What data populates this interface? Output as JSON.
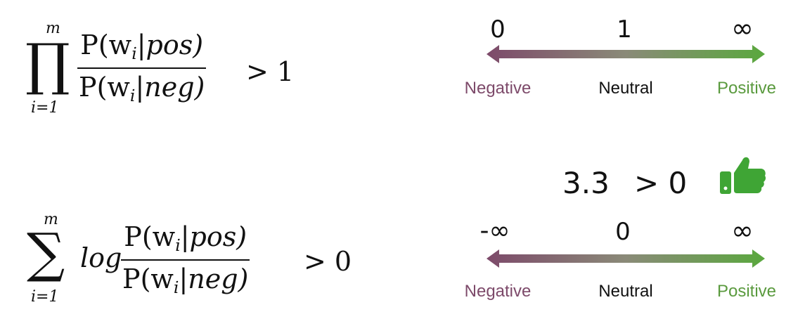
{
  "formula_product": {
    "operator": "∏",
    "upper": "m",
    "lower": "i=1",
    "numerator": {
      "p": "P(w",
      "sub": "i",
      "rest": "|pos)"
    },
    "denominator": {
      "p": "P(w",
      "sub": "i",
      "rest": "|neg)"
    },
    "relation": "> 1"
  },
  "formula_sum": {
    "operator": "∑",
    "upper": "m",
    "lower": "i=1",
    "log": "log",
    "numerator": {
      "p": "P(w",
      "sub": "i",
      "rest": "|pos)"
    },
    "denominator": {
      "p": "P(w",
      "sub": "i",
      "rest": "|neg)"
    },
    "relation": "> 0"
  },
  "scale_ratio": {
    "ticks": [
      "0",
      "1",
      "∞"
    ],
    "labels": {
      "negative": "Negative",
      "neutral": "Neutral",
      "positive": "Positive"
    }
  },
  "scale_log": {
    "ticks": [
      "-∞",
      "0",
      "∞"
    ],
    "labels": {
      "negative": "Negative",
      "neutral": "Neutral",
      "positive": "Positive"
    }
  },
  "score": {
    "value": "3.3",
    "relation": "> 0"
  },
  "colors": {
    "negative": "#7d4a6a",
    "neutral": "#111111",
    "positive": "#5a9a3e",
    "thumb": "#3fa535"
  },
  "icons": {
    "verdict": "thumbs-up-icon"
  }
}
